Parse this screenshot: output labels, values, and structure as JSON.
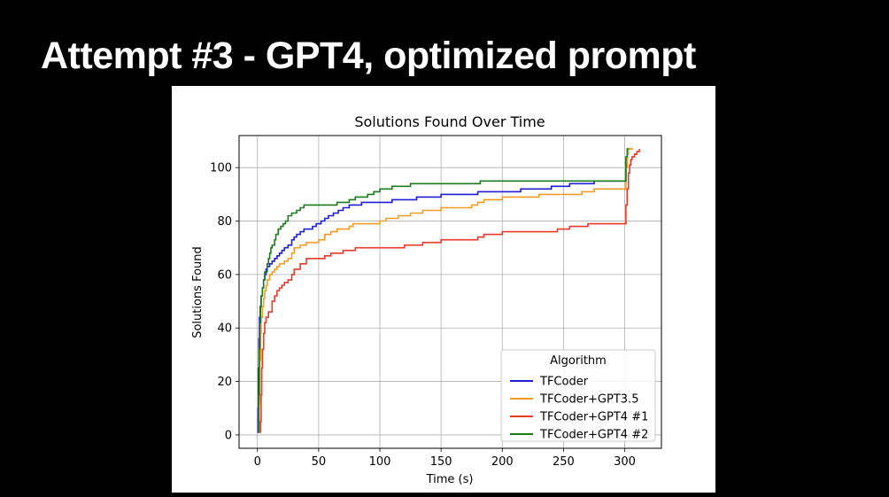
{
  "slide": {
    "title": "Attempt #3 - GPT4, optimized prompt"
  },
  "chart_data": {
    "type": "line",
    "title": "Solutions Found Over Time",
    "xlabel": "Time (s)",
    "ylabel": "Solutions Found",
    "xlim": [
      -15,
      330
    ],
    "ylim": [
      -5,
      112
    ],
    "xticks": [
      0,
      50,
      100,
      150,
      200,
      250,
      300
    ],
    "yticks": [
      0,
      20,
      40,
      60,
      80,
      100
    ],
    "grid": true,
    "step": true,
    "legend": {
      "title": "Algorithm",
      "placement": "lower right"
    },
    "series": [
      {
        "name": "TFCoder",
        "color": "#1f1fd6",
        "points": [
          [
            0,
            1
          ],
          [
            0.4,
            10
          ],
          [
            0.8,
            25
          ],
          [
            1.2,
            36
          ],
          [
            1.6,
            44
          ],
          [
            2.2,
            48
          ],
          [
            3,
            52
          ],
          [
            4,
            55
          ],
          [
            5,
            58
          ],
          [
            6,
            60
          ],
          [
            7,
            62
          ],
          [
            8,
            63
          ],
          [
            10,
            64
          ],
          [
            12,
            65
          ],
          [
            14,
            66
          ],
          [
            16,
            67
          ],
          [
            18,
            68
          ],
          [
            20,
            69
          ],
          [
            22,
            70
          ],
          [
            25,
            71
          ],
          [
            28,
            73
          ],
          [
            30,
            74
          ],
          [
            32,
            75
          ],
          [
            35,
            76
          ],
          [
            38,
            77
          ],
          [
            45,
            78
          ],
          [
            48,
            79
          ],
          [
            52,
            80
          ],
          [
            55,
            81
          ],
          [
            58,
            82
          ],
          [
            62,
            83
          ],
          [
            66,
            84
          ],
          [
            70,
            85
          ],
          [
            75,
            86
          ],
          [
            85,
            87
          ],
          [
            110,
            88
          ],
          [
            130,
            89
          ],
          [
            150,
            90
          ],
          [
            180,
            91
          ],
          [
            215,
            92
          ],
          [
            240,
            93
          ],
          [
            255,
            94
          ],
          [
            275,
            95
          ],
          [
            300,
            95
          ],
          [
            301,
            103
          ],
          [
            302,
            106
          ],
          [
            303,
            107
          ],
          [
            305,
            107
          ]
        ]
      },
      {
        "name": "TFCoder+GPT3.5",
        "color": "#f39c24",
        "points": [
          [
            1,
            1
          ],
          [
            1.5,
            12
          ],
          [
            2,
            28
          ],
          [
            2.5,
            38
          ],
          [
            3,
            44
          ],
          [
            4,
            48
          ],
          [
            5,
            51
          ],
          [
            6,
            54
          ],
          [
            7,
            56
          ],
          [
            8,
            58
          ],
          [
            10,
            60
          ],
          [
            12,
            61
          ],
          [
            14,
            62
          ],
          [
            16,
            63
          ],
          [
            18,
            64
          ],
          [
            22,
            65
          ],
          [
            25,
            66
          ],
          [
            28,
            68
          ],
          [
            30,
            70
          ],
          [
            35,
            71
          ],
          [
            40,
            72
          ],
          [
            50,
            73
          ],
          [
            55,
            75
          ],
          [
            60,
            76
          ],
          [
            65,
            77
          ],
          [
            75,
            78
          ],
          [
            78,
            79
          ],
          [
            100,
            80
          ],
          [
            105,
            81
          ],
          [
            115,
            82
          ],
          [
            125,
            83
          ],
          [
            135,
            84
          ],
          [
            150,
            85
          ],
          [
            175,
            86
          ],
          [
            180,
            87
          ],
          [
            185,
            88
          ],
          [
            200,
            89
          ],
          [
            230,
            90
          ],
          [
            265,
            91
          ],
          [
            275,
            92
          ],
          [
            300,
            92
          ],
          [
            301,
            100
          ],
          [
            302,
            105
          ],
          [
            303,
            107
          ],
          [
            307,
            107
          ]
        ]
      },
      {
        "name": "TFCoder+GPT4 #1",
        "color": "#e8392a",
        "points": [
          [
            2,
            1
          ],
          [
            2.5,
            5
          ],
          [
            3,
            15
          ],
          [
            3.5,
            25
          ],
          [
            4,
            32
          ],
          [
            5,
            38
          ],
          [
            6,
            42
          ],
          [
            7,
            44
          ],
          [
            9,
            46
          ],
          [
            12,
            50
          ],
          [
            14,
            52
          ],
          [
            16,
            54
          ],
          [
            18,
            55
          ],
          [
            20,
            56
          ],
          [
            22,
            57
          ],
          [
            25,
            58
          ],
          [
            28,
            60
          ],
          [
            30,
            62
          ],
          [
            35,
            64
          ],
          [
            40,
            66
          ],
          [
            55,
            67
          ],
          [
            60,
            68
          ],
          [
            70,
            69
          ],
          [
            80,
            70
          ],
          [
            120,
            71
          ],
          [
            135,
            72
          ],
          [
            150,
            73
          ],
          [
            180,
            74
          ],
          [
            185,
            75
          ],
          [
            200,
            76
          ],
          [
            245,
            77
          ],
          [
            255,
            78
          ],
          [
            270,
            79
          ],
          [
            300,
            79
          ],
          [
            301,
            86
          ],
          [
            302,
            92
          ],
          [
            303,
            98
          ],
          [
            304,
            101
          ],
          [
            305,
            103
          ],
          [
            306,
            104
          ],
          [
            308,
            105
          ],
          [
            310,
            106
          ],
          [
            312,
            107
          ]
        ]
      },
      {
        "name": "TFCoder+GPT4 #2",
        "color": "#1e7b1e",
        "points": [
          [
            0.5,
            1
          ],
          [
            1,
            15
          ],
          [
            1.5,
            32
          ],
          [
            2,
            42
          ],
          [
            2.5,
            48
          ],
          [
            3,
            52
          ],
          [
            4,
            55
          ],
          [
            5,
            58
          ],
          [
            6,
            61
          ],
          [
            8,
            64
          ],
          [
            9,
            66
          ],
          [
            10,
            68
          ],
          [
            11,
            70
          ],
          [
            12,
            71
          ],
          [
            14,
            73
          ],
          [
            15,
            75
          ],
          [
            17,
            77
          ],
          [
            19,
            78
          ],
          [
            21,
            79
          ],
          [
            23,
            80
          ],
          [
            25,
            82
          ],
          [
            28,
            83
          ],
          [
            32,
            84
          ],
          [
            35,
            85
          ],
          [
            38,
            86
          ],
          [
            55,
            86
          ],
          [
            65,
            87
          ],
          [
            75,
            88
          ],
          [
            80,
            89
          ],
          [
            90,
            90
          ],
          [
            95,
            91
          ],
          [
            100,
            92
          ],
          [
            110,
            93
          ],
          [
            125,
            94
          ],
          [
            175,
            94
          ],
          [
            182,
            95
          ],
          [
            300,
            95
          ],
          [
            301,
            104
          ],
          [
            302,
            107
          ],
          [
            303,
            107
          ]
        ]
      }
    ]
  }
}
